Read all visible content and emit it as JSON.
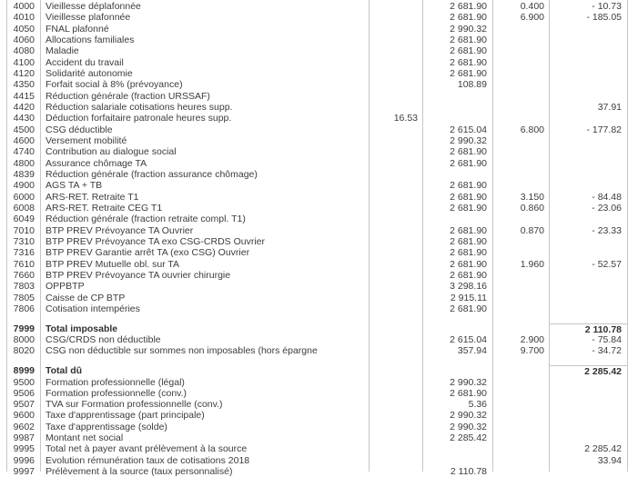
{
  "colors": {
    "background": "#ffffff",
    "text": "#3c3c3c",
    "grid_line": "#c5c5c5"
  },
  "table": {
    "description_columns": [
      "code",
      "label",
      "quantity",
      "base",
      "rate",
      "amount"
    ],
    "rows": [
      {
        "code": "4000",
        "label": "Vieillesse déplafonnée",
        "base": "2 681.90",
        "rate": "0.400",
        "amount": "- 10.73"
      },
      {
        "code": "4010",
        "label": "Vieillesse plafonnée",
        "base": "2 681.90",
        "rate": "6.900",
        "amount": "- 185.05"
      },
      {
        "code": "4050",
        "label": "FNAL plafonné",
        "base": "2 990.32"
      },
      {
        "code": "4060",
        "label": "Allocations familiales",
        "base": "2 681.90"
      },
      {
        "code": "4080",
        "label": "Maladie",
        "base": "2 681.90"
      },
      {
        "code": "4100",
        "label": "Accident du travail",
        "base": "2 681.90"
      },
      {
        "code": "4120",
        "label": "Solidarité autonomie",
        "base": "2 681.90"
      },
      {
        "code": "4350",
        "label": "Forfait social à 8% (prévoyance)",
        "base": "108.89"
      },
      {
        "code": "4415",
        "label": "Réduction générale (fraction URSSAF)"
      },
      {
        "code": "4420",
        "label": "Réduction salariale cotisations heures supp.",
        "amount": "37.91"
      },
      {
        "code": "4430",
        "label": "Déduction forfaitaire patronale heures supp.",
        "quantity": "16.53"
      },
      {
        "code": "4500",
        "label": "CSG déductible",
        "base": "2 615.04",
        "rate": "6.800",
        "amount": "- 177.82"
      },
      {
        "code": "4600",
        "label": "Versement mobilité",
        "base": "2 990.32"
      },
      {
        "code": "4740",
        "label": "Contribution au dialogue social",
        "base": "2 681.90"
      },
      {
        "code": "4800",
        "label": "Assurance chômage TA",
        "base": "2 681.90"
      },
      {
        "code": "4839",
        "label": "Réduction générale (fraction assurance chômage)"
      },
      {
        "code": "4900",
        "label": "AGS TA + TB",
        "base": "2 681.90"
      },
      {
        "code": "6000",
        "label": "ARS-RET. Retraite T1",
        "base": "2 681.90",
        "rate": "3.150",
        "amount": "- 84.48"
      },
      {
        "code": "6008",
        "label": "ARS-RET. Retraite CEG T1",
        "base": "2 681.90",
        "rate": "0.860",
        "amount": "- 23.06"
      },
      {
        "code": "6049",
        "label": "Réduction générale (fraction retraite compl. T1)"
      },
      {
        "code": "7010",
        "label": "BTP PREV Prévoyance TA Ouvrier",
        "base": "2 681.90",
        "rate": "0.870",
        "amount": "- 23.33"
      },
      {
        "code": "7310",
        "label": "BTP PREV Prévoyance TA exo CSG-CRDS Ouvrier",
        "base": "2 681.90"
      },
      {
        "code": "7316",
        "label": "BTP PREV Garantie arrêt TA (exo CSG) Ouvrier",
        "base": "2 681.90"
      },
      {
        "code": "7610",
        "label": "BTP PREV Mutuelle obl. sur TA",
        "base": "2 681.90",
        "rate": "1.960",
        "amount": "- 52.57"
      },
      {
        "code": "7660",
        "label": "BTP PREV Prévoyance TA ouvrier chirurgie",
        "base": "2 681.90"
      },
      {
        "code": "7803",
        "label": "OPPBTP",
        "base": "3 298.16"
      },
      {
        "code": "7805",
        "label": "Caisse de CP BTP",
        "base": "2 915.11"
      },
      {
        "code": "7806",
        "label": "Cotisation intempéries",
        "base": "2 681.90"
      },
      {
        "type": "spacer"
      },
      {
        "code": "7999",
        "label": "Total imposable",
        "amount": "2 110.78",
        "bold": true,
        "box_top": true
      },
      {
        "code": "8000",
        "label": "CSG/CRDS non déductible",
        "base": "2 615.04",
        "rate": "2.900",
        "amount": "- 75.84"
      },
      {
        "code": "8020",
        "label": "CSG non déductible sur sommes non imposables (hors épargne",
        "base": "357.94",
        "rate": "9.700",
        "amount": "- 34.72"
      },
      {
        "type": "spacer"
      },
      {
        "code": "8999",
        "label": "Total dû",
        "amount": "2 285.42",
        "bold": true,
        "box_top": true
      },
      {
        "code": "9500",
        "label": "Formation professionnelle (légal)",
        "base": "2 990.32"
      },
      {
        "code": "9506",
        "label": "Formation professionnelle (conv.)",
        "base": "2 681.90"
      },
      {
        "code": "9507",
        "label": "TVA sur Formation professionnelle (conv.)",
        "base": "5.36"
      },
      {
        "code": "9600",
        "label": "Taxe d'apprentissage (part principale)",
        "base": "2 990.32"
      },
      {
        "code": "9602",
        "label": "Taxe d'apprentissage (solde)",
        "base": "2 990.32"
      },
      {
        "code": "9987",
        "label": "Montant net social",
        "base": "2 285.42"
      },
      {
        "code": "9995",
        "label": "Total net à payer avant prélèvement à la source",
        "amount": "2 285.42"
      },
      {
        "code": "9996",
        "label": "Evolution rémunération taux de cotisations 2018",
        "amount": "33.94"
      },
      {
        "code": "9997",
        "label": "Prélèvement à la source (taux personnalisé)",
        "base": "2 110.78"
      }
    ]
  }
}
